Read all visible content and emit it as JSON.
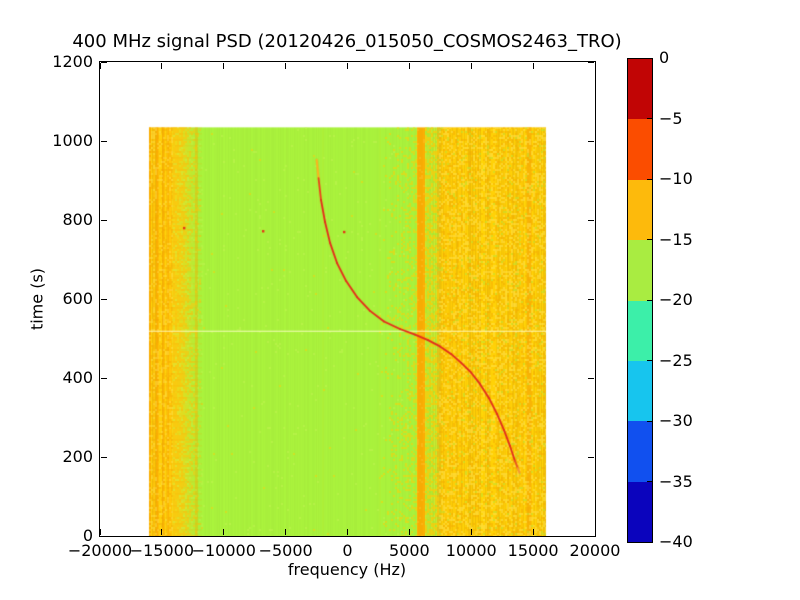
{
  "chart_data": {
    "type": "heatmap",
    "title": "400 MHz signal PSD (20120426_015050_COSMOS2463_TRO)",
    "xlabel": "frequency (Hz)",
    "ylabel": "time (s)",
    "xlim": [
      -20000,
      20000
    ],
    "ylim": [
      0,
      1200
    ],
    "xticks": [
      -20000,
      -15000,
      -10000,
      -5000,
      0,
      5000,
      10000,
      15000,
      20000
    ],
    "yticks": [
      0,
      200,
      400,
      600,
      800,
      1000,
      1200
    ],
    "grid": false,
    "data_extent": {
      "freq": [
        -16040,
        16040
      ],
      "time": [
        0,
        1035
      ]
    },
    "colorbar": {
      "ticks": [
        0,
        -5,
        -10,
        -15,
        -20,
        -25,
        -30,
        -35,
        -40
      ],
      "segment_colors_top_to_bottom": [
        "#c10505",
        "#fb4d00",
        "#fdba0c",
        "#a9ec41",
        "#3cefa9",
        "#17c5ee",
        "#1150ef",
        "#0b04bd"
      ]
    },
    "background_bands": [
      {
        "f0": -16040,
        "f1": -14150,
        "style": "gold",
        "base": "#fcc50a"
      },
      {
        "f0": -14150,
        "f1": -11750,
        "style": "fade",
        "from": "#f4d616",
        "to": "#a9f13c"
      },
      {
        "f0": -11750,
        "f1": 5616,
        "style": "green",
        "base": "#a9f13c"
      },
      {
        "f0": 5616,
        "f1": 6263,
        "style": "solid",
        "base": "#fbae03"
      },
      {
        "f0": 6263,
        "f1": 7473,
        "style": "mottle_green",
        "base": "#c3ea32"
      },
      {
        "f0": 7473,
        "f1": 16040,
        "style": "mottle_gold",
        "base": "#fcca07"
      }
    ],
    "stripes": [
      {
        "f0": -16040,
        "f1": -15880,
        "color": "#f8a202",
        "alpha": 0.75
      },
      {
        "f0": -15480,
        "f1": -15280,
        "color": "#f8a202",
        "alpha": 0.7
      },
      {
        "f0": -14960,
        "f1": -14780,
        "color": "#f8a202",
        "alpha": 0.65
      },
      {
        "f0": -14560,
        "f1": -14420,
        "color": "#f8a202",
        "alpha": 0.5
      },
      {
        "f0": -12330,
        "f1": -12090,
        "color": "#f5b202",
        "alpha": 0.45
      },
      {
        "f0": -2010,
        "f1": -1950,
        "color": "#ffd400",
        "alpha": 0.1
      },
      {
        "f0": 2590,
        "f1": 2660,
        "color": "#ffd400",
        "alpha": 0.1
      },
      {
        "f0": 7230,
        "f1": 7473,
        "color": "#fba708",
        "alpha": 0.55
      },
      {
        "f0": 8100,
        "f1": 8180,
        "color": "#f5ae02",
        "alpha": 0.25
      },
      {
        "f0": 8900,
        "f1": 8980,
        "color": "#f5ae02",
        "alpha": 0.22
      },
      {
        "f0": 9870,
        "f1": 9950,
        "color": "#f5ae02",
        "alpha": 0.22
      },
      {
        "f0": 10520,
        "f1": 10600,
        "color": "#f5ae02",
        "alpha": 0.2
      },
      {
        "f0": 11330,
        "f1": 11410,
        "color": "#f5ae02",
        "alpha": 0.22
      },
      {
        "f0": 12140,
        "f1": 12220,
        "color": "#f5ae02",
        "alpha": 0.2
      },
      {
        "f0": 12950,
        "f1": 13030,
        "color": "#f5ae02",
        "alpha": 0.22
      },
      {
        "f0": 14080,
        "f1": 14160,
        "color": "#f5ae02",
        "alpha": 0.25
      },
      {
        "f0": 14500,
        "f1": 14880,
        "color": "#fbb006",
        "alpha": 0.8
      },
      {
        "f0": 14990,
        "f1": 15100,
        "color": "#f8c004",
        "alpha": 0.4
      }
    ],
    "pale_line": {
      "time": 520,
      "color": "#ffffcd",
      "alpha": 0.65
    },
    "doppler_curve": {
      "color": "#e2301c",
      "tip_color_top": "#fcb41e",
      "tip_color_bottom": "#f2973a",
      "points_time_freq": [
        [
          952,
          -2490
        ],
        [
          906,
          -2340
        ],
        [
          851,
          -2140
        ],
        [
          795,
          -1815
        ],
        [
          742,
          -1410
        ],
        [
          691,
          -845
        ],
        [
          646,
          -120
        ],
        [
          605,
          770
        ],
        [
          570,
          1820
        ],
        [
          543,
          2950
        ],
        [
          524,
          4240
        ],
        [
          510,
          5455
        ],
        [
          496,
          6505
        ],
        [
          480,
          7475
        ],
        [
          461,
          8365
        ],
        [
          439,
          9170
        ],
        [
          414,
          9980
        ],
        [
          385,
          10705
        ],
        [
          349,
          11435
        ],
        [
          309,
          12080
        ],
        [
          268,
          12645
        ],
        [
          228,
          13130
        ],
        [
          190,
          13535
        ],
        [
          172,
          13760
        ],
        [
          160,
          13900
        ]
      ]
    },
    "noise_specks": {
      "color": "#e53517",
      "points_time_freq": [
        [
          780,
          -13212
        ],
        [
          772,
          -6827
        ],
        [
          770,
          -283
        ]
      ]
    },
    "palette": {
      "gold_light": "#ffe14d",
      "gold_dark": "#f3a802",
      "gold_fleck": "#fcd00a",
      "green_fleck_light": "#c6f455",
      "green_fleck": "#b5ea3c",
      "row_band_left": "#f4a402",
      "row_band_right": "#fabe02"
    }
  },
  "layout_note": "static matplotlib-style figure, no interactive widgets"
}
